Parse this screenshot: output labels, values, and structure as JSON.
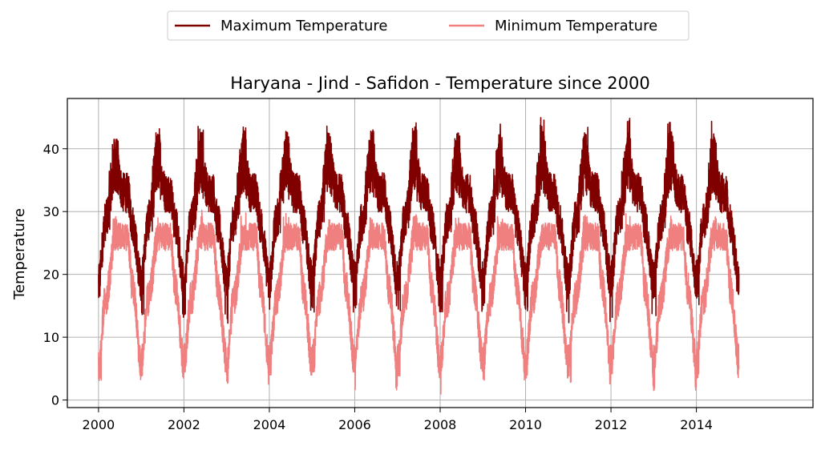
{
  "chart_data": {
    "type": "line",
    "title": "Haryana - Jind - Safidon - Temperature since 2000",
    "xlabel": "",
    "ylabel": "Temperature",
    "xlim": [
      1999.27,
      2016.73
    ],
    "ylim": [
      -1.2,
      48.0
    ],
    "x_ticks": [
      2000,
      2002,
      2004,
      2006,
      2008,
      2010,
      2012,
      2014
    ],
    "x_tick_labels": [
      "2000",
      "2002",
      "2004",
      "2006",
      "2008",
      "2010",
      "2012",
      "2014"
    ],
    "y_ticks": [
      0,
      10,
      20,
      30,
      40
    ],
    "y_tick_labels": [
      "0",
      "10",
      "20",
      "30",
      "40"
    ],
    "grid": true,
    "legend_position": "top-center",
    "date_range": [
      "2000-01-01",
      "2014-12-31"
    ],
    "series": [
      {
        "name": "Maximum Temperature",
        "color": "#800000",
        "annual_max": [
          41.5,
          43.5,
          44.0,
          44.5,
          43.5,
          44.0,
          43.5,
          44.2,
          42.5,
          44.2,
          45.0,
          43.5,
          45.7,
          45.2,
          45.6
        ],
        "annual_min": [
          15.5,
          13.0,
          13.5,
          12.0,
          13.5,
          14.0,
          14.5,
          14.0,
          14.0,
          14.5,
          14.0,
          12.0,
          13.0,
          12.5,
          14.0
        ],
        "typical_summer": 38,
        "typical_monsoon": 33,
        "typical_winter": 19
      },
      {
        "name": "Minimum Temperature",
        "color": "#f08080",
        "annual_max": [
          29.5,
          29.0,
          30.5,
          30.0,
          30.0,
          29.5,
          29.5,
          29.5,
          29.5,
          29.5,
          30.0,
          29.5,
          30.5,
          30.0,
          29.5
        ],
        "annual_min": [
          3.0,
          3.5,
          4.5,
          2.5,
          4.0,
          4.5,
          1.5,
          3.5,
          0.8,
          3.0,
          3.5,
          2.5,
          2.0,
          1.2,
          3.0
        ],
        "typical_summer": 26,
        "typical_monsoon": 26,
        "typical_winter": 6
      }
    ]
  }
}
